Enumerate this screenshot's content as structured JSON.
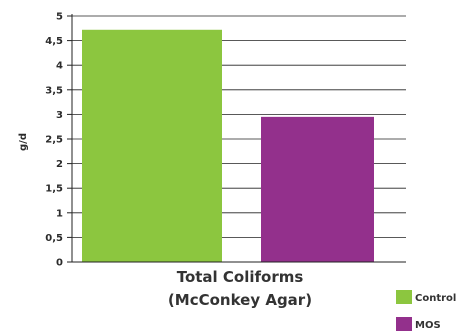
{
  "chart_data": {
    "type": "bar",
    "categories": [
      "Total Coliforms (McConkey Agar)"
    ],
    "category_label_lines": [
      "Total Coliforms",
      "(McConkey Agar)"
    ],
    "series": [
      {
        "name": "Control",
        "values": [
          4.72
        ],
        "color": "#8cc63f"
      },
      {
        "name": "MOS",
        "values": [
          2.95
        ],
        "color": "#93308c"
      }
    ],
    "title": "",
    "xlabel": "",
    "ylabel": "g/d",
    "ylim": [
      0,
      5
    ],
    "yticks": [
      0,
      0.5,
      1,
      1.5,
      2,
      2.5,
      3,
      3.5,
      4,
      4.5,
      5
    ],
    "ytick_labels": [
      "0",
      "0,5",
      "1",
      "1,5",
      "2",
      "2,5",
      "3",
      "3,5",
      "4",
      "4,5",
      "5"
    ],
    "grid": true,
    "legend_position": "bottom-right"
  }
}
